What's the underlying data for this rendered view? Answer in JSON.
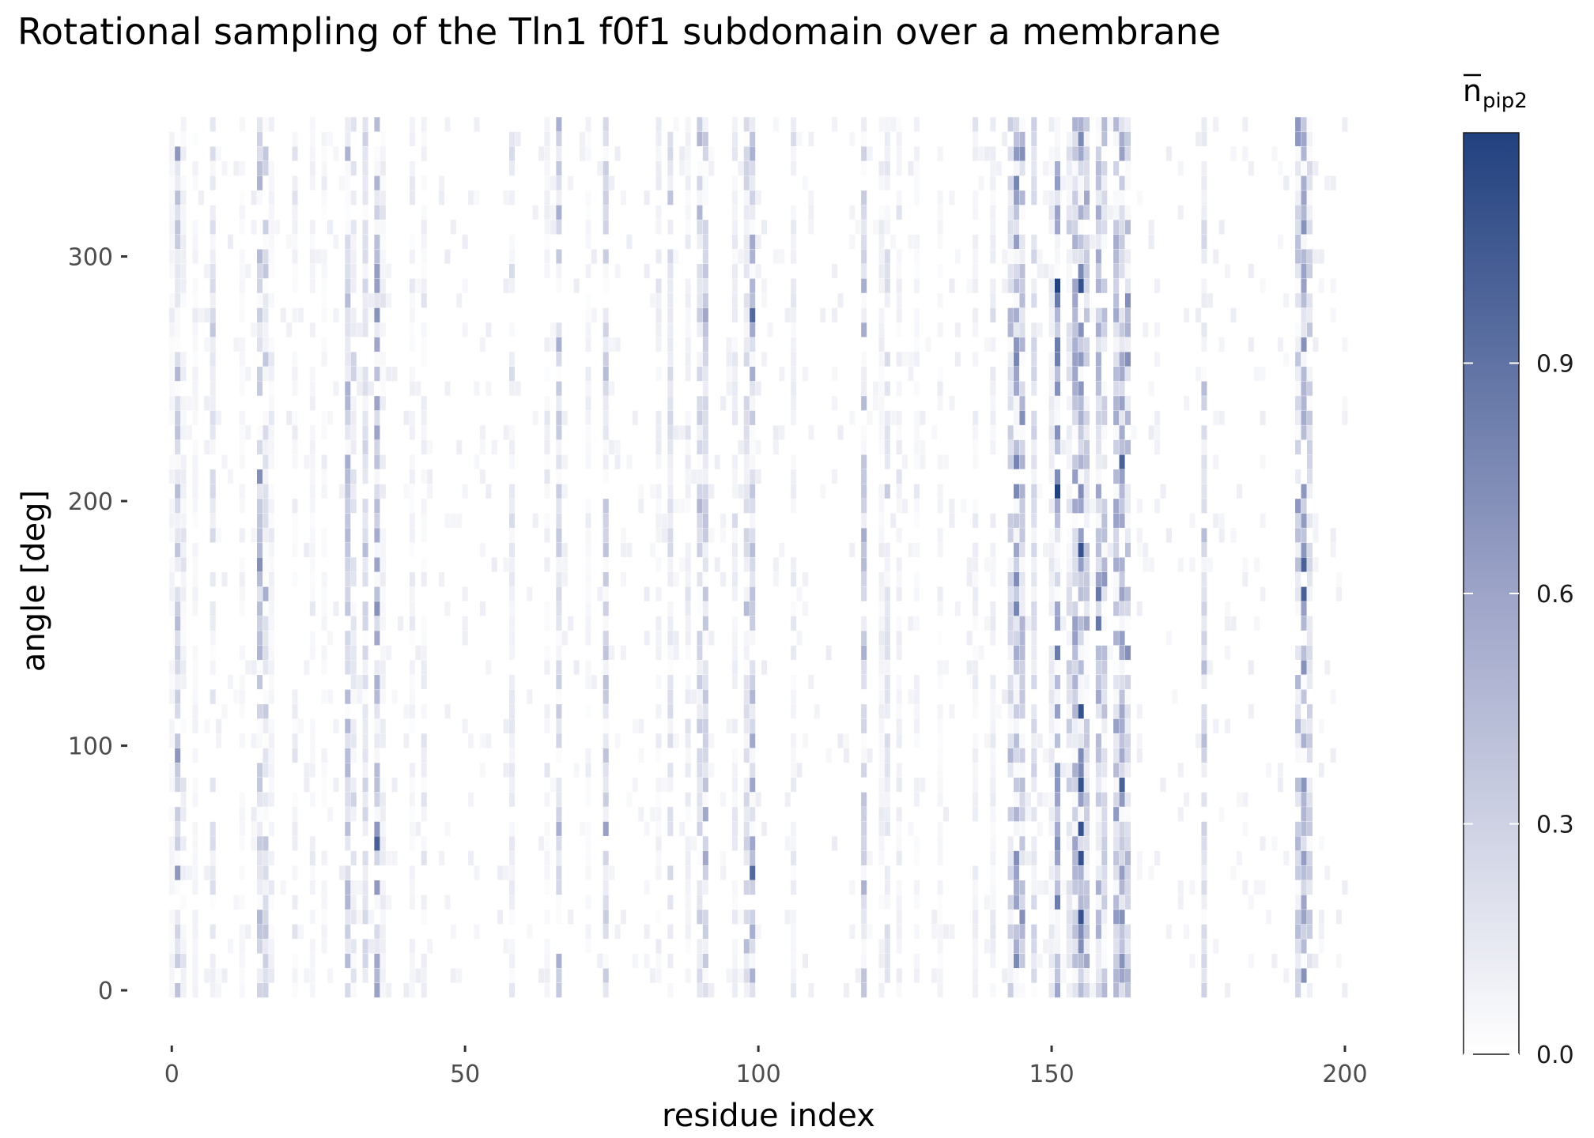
{
  "chart_data": {
    "type": "heatmap",
    "title": "Rotational sampling of the Tln1 f0f1 subdomain over a membrane",
    "xlabel": "residue index",
    "ylabel": "angle [deg]",
    "xlim": [
      -3,
      212
    ],
    "ylim": [
      -20,
      358
    ],
    "x_ticks": [
      0,
      50,
      100,
      150,
      200
    ],
    "x_tick_labels": [
      "0",
      "50",
      "100",
      "150",
      "200"
    ],
    "y_ticks": [
      0,
      100,
      200,
      300
    ],
    "y_tick_labels": [
      "0",
      "100",
      "200",
      "300"
    ],
    "x_range": [
      0,
      200
    ],
    "angle_step_deg": 6,
    "angle_range": [
      0,
      354
    ],
    "colorbar": {
      "title_main": "n",
      "title_sub": "pip2",
      "title_overline": true,
      "range": [
        0,
        1.2
      ],
      "ticks": [
        0.0,
        0.3,
        0.6,
        0.9
      ],
      "tick_labels": [
        "0.0",
        "0.3",
        "0.6",
        "0.9"
      ],
      "low_color": "#ffffff",
      "high_color": "#22417f"
    },
    "residue_profile": {
      "residues": [
        0,
        1,
        2,
        4,
        7,
        12,
        15,
        16,
        17,
        21,
        24,
        26,
        30,
        31,
        33,
        35,
        36,
        41,
        43,
        58,
        64,
        66,
        71,
        74,
        83,
        85,
        88,
        90,
        91,
        96,
        98,
        99,
        106,
        118,
        121,
        122,
        124,
        127,
        131,
        137,
        140,
        143,
        144,
        145,
        147,
        150,
        151,
        153,
        154,
        155,
        156,
        158,
        159,
        161,
        162,
        163,
        176,
        192,
        193,
        194
      ],
      "mean_npip2": [
        0.05,
        0.28,
        0.08,
        0.05,
        0.15,
        0.04,
        0.3,
        0.22,
        0.06,
        0.08,
        0.06,
        0.05,
        0.32,
        0.12,
        0.18,
        0.42,
        0.08,
        0.06,
        0.08,
        0.1,
        0.07,
        0.22,
        0.05,
        0.26,
        0.08,
        0.16,
        0.08,
        0.2,
        0.24,
        0.1,
        0.18,
        0.4,
        0.1,
        0.32,
        0.08,
        0.14,
        0.08,
        0.06,
        0.05,
        0.08,
        0.1,
        0.2,
        0.48,
        0.3,
        0.18,
        0.1,
        0.5,
        0.14,
        0.38,
        0.46,
        0.24,
        0.36,
        0.28,
        0.4,
        0.42,
        0.3,
        0.18,
        0.28,
        0.42,
        0.22
      ]
    }
  }
}
